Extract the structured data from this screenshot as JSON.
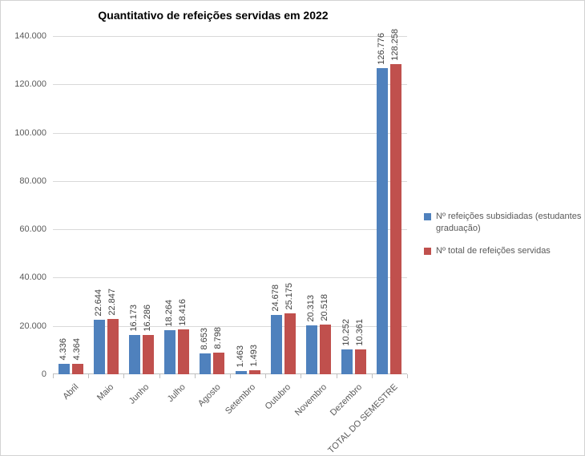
{
  "chart_data": {
    "type": "bar",
    "title": "Quantitativo de refeições servidas em 2022",
    "categories": [
      "Abril",
      "Maio",
      "Junho",
      "Julho",
      "Agosto",
      "Setembro",
      "Outubro",
      "Novembro",
      "Dezembro",
      "TOTAL DO SEMESTRE"
    ],
    "series": [
      {
        "name": "Nº refeições subsidiadas (estudantes graduação)",
        "color": "#4f81bd",
        "values": [
          4336,
          22644,
          16173,
          18264,
          8653,
          1463,
          24678,
          20313,
          10252,
          126776
        ],
        "labels": [
          "4.336",
          "22.644",
          "16.173",
          "18.264",
          "8.653",
          "1.463",
          "24.678",
          "20.313",
          "10.252",
          "126.776"
        ]
      },
      {
        "name": "Nº total de refeições servidas",
        "color": "#c0504d",
        "values": [
          4364,
          22847,
          16286,
          18416,
          8798,
          1493,
          25175,
          20518,
          10361,
          128258
        ],
        "labels": [
          "4.364",
          "22.847",
          "16.286",
          "18.416",
          "8.798",
          "1.493",
          "25.175",
          "20.518",
          "10.361",
          "128.258"
        ]
      }
    ],
    "ylim": [
      0,
      140000
    ],
    "ytick_step": 20000,
    "ytick_labels": [
      "0",
      "20.000",
      "40.000",
      "60.000",
      "80.000",
      "100.000",
      "120.000",
      "140.000"
    ],
    "grid": true,
    "legend_position": "right",
    "colors": {
      "gridline": "#d9d9d9",
      "axis_line": "#bfbfbf",
      "axis_text": "#595959",
      "data_label_text": "#404040",
      "title_text": "#000000",
      "chart_border": "#d3d3d3",
      "background": "#ffffff"
    }
  }
}
